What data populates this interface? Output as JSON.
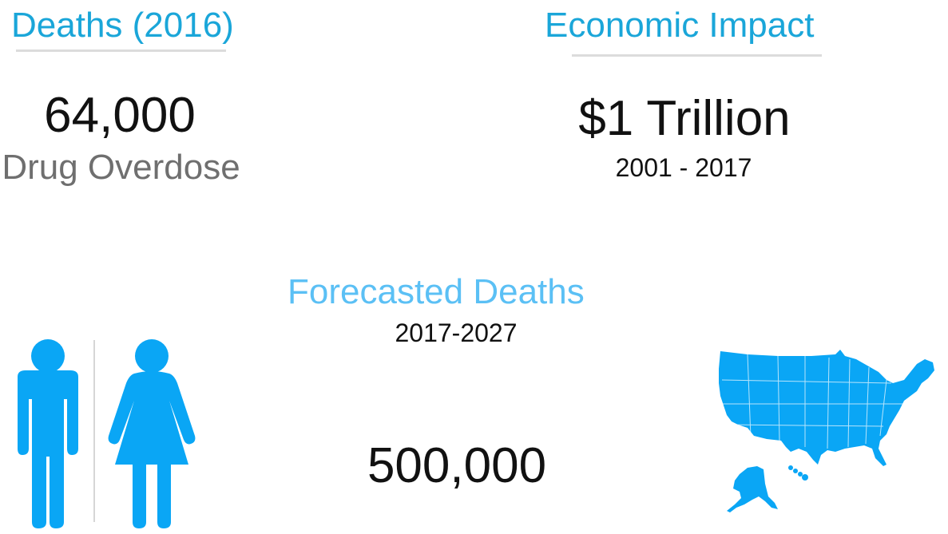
{
  "deaths": {
    "heading": "Deaths (2016)",
    "count": "64,000",
    "cause": "Drug Overdose"
  },
  "economic": {
    "heading": "Economic Impact",
    "amount": "$1 Trillion",
    "period": "2001 - 2017"
  },
  "forecast": {
    "heading": "Forecasted Deaths",
    "period": "2017-2027",
    "count": "500,000"
  },
  "icons": {
    "people": "man-woman-icon",
    "map": "usa-map-icon"
  },
  "colors": {
    "heading_blue": "#1aa6d9",
    "forecast_blue": "#5bc0f5",
    "icon_blue": "#0aa6f5",
    "rule_gray": "#dcdcdc"
  }
}
